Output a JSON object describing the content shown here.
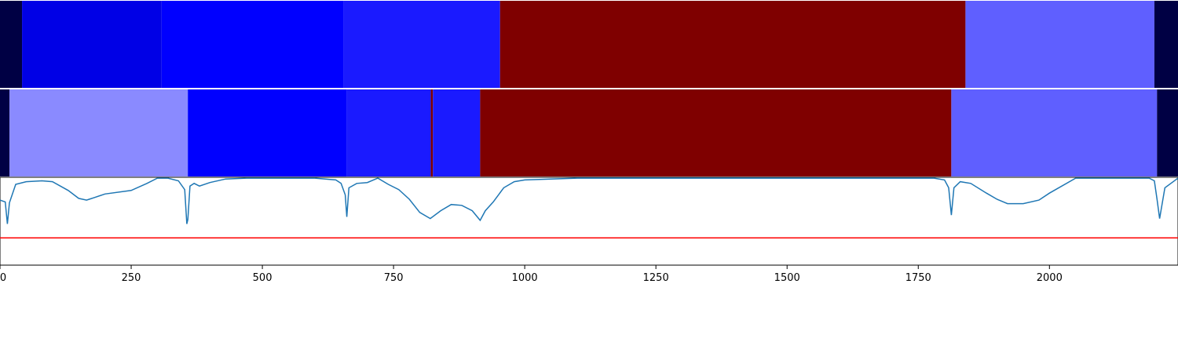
{
  "chart_data": {
    "type": "heatmap+line",
    "xlim": [
      0,
      2245
    ],
    "x_ticks": [
      0,
      250,
      500,
      750,
      1000,
      1250,
      1500,
      1750,
      2000
    ],
    "x_tick_labels": [
      "0",
      "250",
      "500",
      "750",
      "1000",
      "1250",
      "1500",
      "1750",
      "2000"
    ],
    "segment_rows": [
      {
        "segments": [
          {
            "start": 0,
            "end": 42,
            "color": "#000044"
          },
          {
            "start": 42,
            "end": 308,
            "color": "#0000e6"
          },
          {
            "start": 308,
            "end": 655,
            "color": "#0000ff"
          },
          {
            "start": 655,
            "end": 953,
            "color": "#1a1aff"
          },
          {
            "start": 953,
            "end": 1840,
            "color": "#7f0000"
          },
          {
            "start": 1840,
            "end": 2200,
            "color": "#5f5fff"
          },
          {
            "start": 2200,
            "end": 2245,
            "color": "#000044"
          }
        ]
      },
      {
        "segments": [
          {
            "start": 0,
            "end": 18,
            "color": "#000044"
          },
          {
            "start": 18,
            "end": 358,
            "color": "#8a8aff"
          },
          {
            "start": 358,
            "end": 661,
            "color": "#0000ff"
          },
          {
            "start": 661,
            "end": 821,
            "color": "#1a1aff"
          },
          {
            "start": 821,
            "end": 825,
            "color": "#7f0000"
          },
          {
            "start": 825,
            "end": 915,
            "color": "#1a1aff"
          },
          {
            "start": 915,
            "end": 1813,
            "color": "#7f0000"
          },
          {
            "start": 1813,
            "end": 2205,
            "color": "#5f5fff"
          },
          {
            "start": 2205,
            "end": 2245,
            "color": "#000044"
          }
        ]
      }
    ],
    "line_series": {
      "color": "#1f77b4",
      "ylim": [
        0,
        1
      ],
      "x": [
        0,
        10,
        14,
        18,
        30,
        50,
        80,
        100,
        130,
        150,
        165,
        170,
        180,
        200,
        250,
        280,
        300,
        320,
        340,
        352,
        356,
        358,
        362,
        370,
        380,
        400,
        430,
        470,
        500,
        550,
        600,
        640,
        650,
        658,
        661,
        665,
        680,
        700,
        720,
        740,
        760,
        780,
        800,
        820,
        840,
        860,
        880,
        900,
        915,
        925,
        940,
        960,
        980,
        1000,
        1050,
        1100,
        1200,
        1300,
        1400,
        1500,
        1600,
        1700,
        1780,
        1800,
        1808,
        1813,
        1818,
        1830,
        1850,
        1880,
        1900,
        1920,
        1950,
        1980,
        2000,
        2050,
        2100,
        2150,
        2190,
        2200,
        2205,
        2210,
        2220,
        2245
      ],
      "y": [
        0.74,
        0.72,
        0.47,
        0.71,
        0.92,
        0.95,
        0.96,
        0.95,
        0.85,
        0.76,
        0.74,
        0.75,
        0.77,
        0.81,
        0.85,
        0.93,
        0.99,
        0.99,
        0.96,
        0.86,
        0.47,
        0.52,
        0.9,
        0.93,
        0.9,
        0.94,
        0.98,
        0.99,
        0.99,
        0.99,
        0.99,
        0.97,
        0.93,
        0.8,
        0.55,
        0.88,
        0.93,
        0.94,
        0.99,
        0.92,
        0.86,
        0.75,
        0.6,
        0.53,
        0.62,
        0.69,
        0.68,
        0.62,
        0.51,
        0.62,
        0.72,
        0.88,
        0.95,
        0.97,
        0.98,
        0.99,
        0.99,
        0.99,
        0.99,
        0.99,
        0.99,
        0.99,
        0.99,
        0.97,
        0.88,
        0.57,
        0.88,
        0.95,
        0.93,
        0.82,
        0.75,
        0.7,
        0.7,
        0.74,
        0.82,
        0.99,
        0.99,
        0.99,
        0.99,
        0.96,
        0.75,
        0.53,
        0.88,
        0.99
      ]
    },
    "hline": {
      "y": 0.31,
      "color": "#ff0000"
    }
  }
}
